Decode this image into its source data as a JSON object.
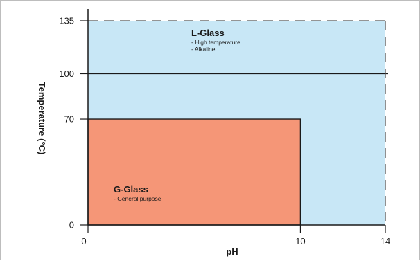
{
  "chart_data": {
    "type": "area",
    "xlabel": "pH",
    "ylabel": "Temperature (°C)",
    "xlim": [
      0,
      14
    ],
    "ylim": [
      0,
      135
    ],
    "x_ticks": [
      0,
      10,
      14
    ],
    "y_ticks": [
      0,
      70,
      100,
      135
    ],
    "grid": false,
    "reference_lines": [
      {
        "axis": "y",
        "value": 100,
        "style": "solid"
      },
      {
        "axis": "y",
        "value": 135,
        "style": "dashed"
      },
      {
        "axis": "x",
        "value": 14,
        "style": "dashed"
      }
    ],
    "regions": [
      {
        "name": "L-Glass",
        "notes": [
          "- High temperature",
          "- Alkaline"
        ],
        "x_range": [
          0,
          14
        ],
        "y_range": [
          0,
          135
        ],
        "color": "#c8e7f6"
      },
      {
        "name": "G-Glass",
        "notes": [
          "- General purpose"
        ],
        "x_range": [
          0,
          10
        ],
        "y_range": [
          0,
          70
        ],
        "color": "#f59677"
      }
    ]
  }
}
